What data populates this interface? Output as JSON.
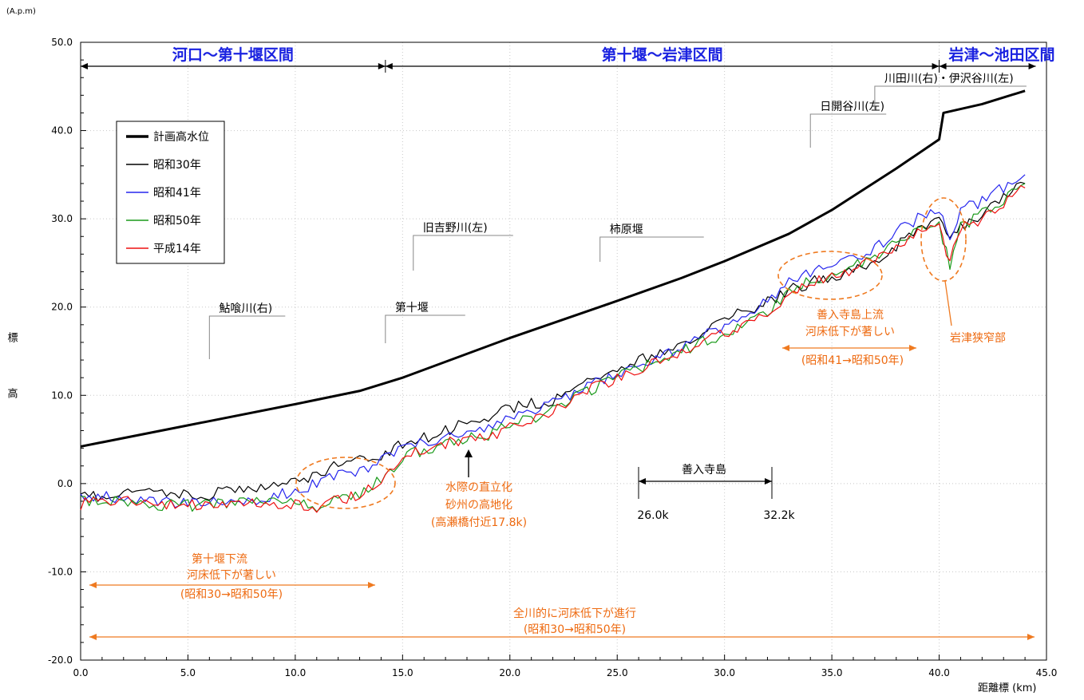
{
  "chart_data": {
    "type": "line",
    "unit_label": "(A.p.m)",
    "ylabel": "標　高",
    "xlabel": "距離標 (km)",
    "xlim": [
      0,
      45
    ],
    "ylim": [
      -20,
      50
    ],
    "x_ticks": [
      "0.0",
      "5.0",
      "10.0",
      "15.0",
      "20.0",
      "25.0",
      "30.0",
      "35.0",
      "40.0",
      "45.0"
    ],
    "y_ticks": [
      "50.0",
      "40.0",
      "30.0",
      "20.0",
      "10.0",
      "0.0",
      "-10.0",
      "-20.0"
    ],
    "legend": {
      "position": "upper-left"
    },
    "series": [
      {
        "name": "計画高水位",
        "color": "#000000",
        "width": 3,
        "points": [
          [
            0,
            4.2
          ],
          [
            5,
            6.6
          ],
          [
            10,
            9.0
          ],
          [
            13,
            10.5
          ],
          [
            15,
            12.0
          ],
          [
            20,
            16.5
          ],
          [
            25,
            20.7
          ],
          [
            28,
            23.3
          ],
          [
            30,
            25.2
          ],
          [
            33,
            28.3
          ],
          [
            35,
            31.0
          ],
          [
            38,
            35.7
          ],
          [
            40,
            39.0
          ],
          [
            40.2,
            42.0
          ],
          [
            42,
            43.0
          ],
          [
            44,
            44.5
          ]
        ]
      },
      {
        "name": "昭和30年",
        "color": "#000000",
        "width": 1.2,
        "points": [
          [
            0,
            -1.5
          ],
          [
            2,
            -1.3
          ],
          [
            4,
            -1.0
          ],
          [
            6,
            -1.2
          ],
          [
            8,
            -0.5
          ],
          [
            10,
            0.0
          ],
          [
            12,
            2.0
          ],
          [
            14,
            3.0
          ],
          [
            15,
            4.5
          ],
          [
            17,
            6.0
          ],
          [
            19,
            7.5
          ],
          [
            20,
            8.5
          ],
          [
            22,
            9.5
          ],
          [
            24,
            12.0
          ],
          [
            26,
            14.0
          ],
          [
            28,
            16.0
          ],
          [
            30,
            18.5
          ],
          [
            32,
            20.5
          ],
          [
            33,
            22.0
          ],
          [
            35,
            23.5
          ],
          [
            37,
            25.0
          ],
          [
            38,
            27.0
          ],
          [
            39,
            29.0
          ],
          [
            40,
            30.0
          ],
          [
            40.5,
            28.0
          ],
          [
            41,
            29.0
          ],
          [
            42,
            30.5
          ],
          [
            43,
            32.5
          ],
          [
            44,
            34.0
          ]
        ]
      },
      {
        "name": "昭和41年",
        "color": "#2626ee",
        "width": 1.2,
        "points": [
          [
            0,
            -1.6
          ],
          [
            2,
            -1.5
          ],
          [
            4,
            -2.0
          ],
          [
            6,
            -2.2
          ],
          [
            8,
            -1.8
          ],
          [
            10,
            -1.0
          ],
          [
            11,
            0.0
          ],
          [
            12,
            1.0
          ],
          [
            13,
            1.5
          ],
          [
            14,
            2.5
          ],
          [
            15,
            4.0
          ],
          [
            17,
            5.5
          ],
          [
            19,
            6.5
          ],
          [
            20,
            7.5
          ],
          [
            22,
            9.0
          ],
          [
            24,
            11.5
          ],
          [
            26,
            13.5
          ],
          [
            28,
            15.5
          ],
          [
            30,
            18.0
          ],
          [
            32,
            20.5
          ],
          [
            33,
            23.0
          ],
          [
            35,
            24.8
          ],
          [
            37,
            26.5
          ],
          [
            38,
            28.5
          ],
          [
            39,
            30.0
          ],
          [
            40,
            31.0
          ],
          [
            40.5,
            27.0
          ],
          [
            41,
            31.0
          ],
          [
            42,
            32.0
          ],
          [
            43,
            33.5
          ],
          [
            44,
            35.0
          ]
        ]
      },
      {
        "name": "昭和50年",
        "color": "#1a9a1a",
        "width": 1.2,
        "points": [
          [
            0,
            -1.8
          ],
          [
            2,
            -2.0
          ],
          [
            4,
            -2.5
          ],
          [
            6,
            -2.4
          ],
          [
            8,
            -2.2
          ],
          [
            10,
            -2.3
          ],
          [
            11,
            -2.5
          ],
          [
            12,
            -1.5
          ],
          [
            13,
            -1.0
          ],
          [
            14,
            0.5
          ],
          [
            15,
            3.0
          ],
          [
            17,
            4.5
          ],
          [
            19,
            5.5
          ],
          [
            20,
            6.5
          ],
          [
            22,
            8.2
          ],
          [
            24,
            11.0
          ],
          [
            26,
            13.0
          ],
          [
            28,
            15.0
          ],
          [
            30,
            17.0
          ],
          [
            32,
            19.5
          ],
          [
            33,
            22.0
          ],
          [
            35,
            23.8
          ],
          [
            37,
            25.5
          ],
          [
            38,
            27.5
          ],
          [
            39,
            29.0
          ],
          [
            40,
            29.5
          ],
          [
            40.5,
            24.5
          ],
          [
            41,
            29.0
          ],
          [
            42,
            30.5
          ],
          [
            43,
            32.0
          ],
          [
            44,
            34.0
          ]
        ]
      },
      {
        "name": "平成14年",
        "color": "#ee1111",
        "width": 1.2,
        "points": [
          [
            0,
            -2.3
          ],
          [
            2,
            -2.0
          ],
          [
            4,
            -2.3
          ],
          [
            6,
            -2.5
          ],
          [
            8,
            -2.4
          ],
          [
            10,
            -2.5
          ],
          [
            11,
            -2.8
          ],
          [
            12,
            -2.0
          ],
          [
            13,
            -1.3
          ],
          [
            14,
            0.3
          ],
          [
            15,
            3.0
          ],
          [
            17,
            4.5
          ],
          [
            19,
            5.3
          ],
          [
            20,
            6.3
          ],
          [
            22,
            8.0
          ],
          [
            24,
            11.0
          ],
          [
            26,
            12.8
          ],
          [
            28,
            14.8
          ],
          [
            30,
            17.0
          ],
          [
            32,
            19.3
          ],
          [
            33,
            21.5
          ],
          [
            35,
            23.5
          ],
          [
            37,
            25.3
          ],
          [
            38,
            27.0
          ],
          [
            39,
            28.8
          ],
          [
            40,
            29.5
          ],
          [
            40.5,
            25.0
          ],
          [
            41,
            29.0
          ],
          [
            42,
            30.0
          ],
          [
            43,
            31.5
          ],
          [
            44,
            33.5
          ]
        ]
      }
    ],
    "segments": [
      {
        "label": "河口～第十堰区間",
        "from": 0,
        "to": 14.2
      },
      {
        "label": "第十堰～岩津区間",
        "from": 14.2,
        "to": 40.0
      },
      {
        "label": "岩津～池田区間",
        "from": 40.0,
        "to": 44.5
      }
    ],
    "tributaries": [
      {
        "label": "鮎喰川(右)",
        "x": 6.0
      },
      {
        "label": "第十堰",
        "x": 14.2
      },
      {
        "label": "旧吉野川(左)",
        "x": 15.5
      },
      {
        "label": "柿原堰",
        "x": 24.2
      },
      {
        "label": "日開谷川(左)",
        "x": 34.0
      },
      {
        "label": "川田川(右)・伊沢谷川(左)",
        "x": 37.0
      }
    ],
    "annotations": {
      "waterside": [
        "水際の直立化",
        "砂州の高地化",
        "(高瀬橋付近17.8k)"
      ],
      "zennyuji_island": "善入寺島",
      "zennyuji_from": "26.0k",
      "zennyuji_to": "32.2k",
      "zennyuji_upstream": [
        "善入寺島上流",
        "河床低下が著しい",
        "(昭和41→昭和50年)"
      ],
      "iwazu_narrow": "岩津狭窄部",
      "below_weir": [
        "第十堰下流",
        "河床低下が著しい",
        "(昭和30→昭和50年)"
      ],
      "whole_river": [
        "全川的に河床低下が進行",
        "(昭和30→昭和50年)"
      ]
    }
  }
}
